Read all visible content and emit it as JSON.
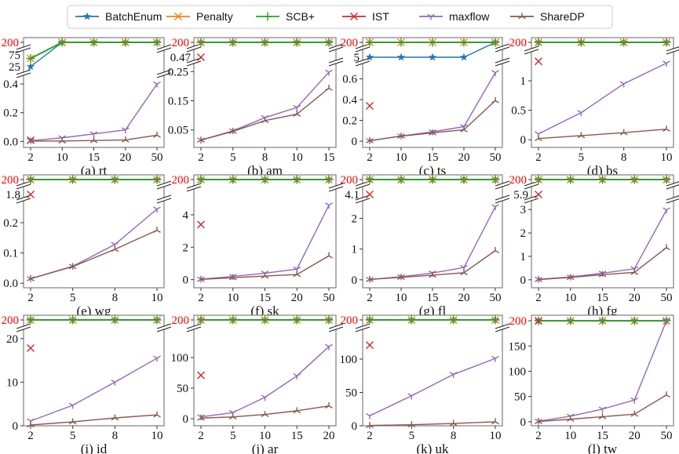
{
  "legend": {
    "placement": "top-center",
    "entries": [
      {
        "name": "BatchEnum",
        "color": "#1f77b4",
        "marker": "star"
      },
      {
        "name": "Penalty",
        "color": "#ff7f0e",
        "marker": "x"
      },
      {
        "name": "SCB+",
        "color": "#2ca02c",
        "marker": "plus"
      },
      {
        "name": "IST",
        "color": "#d62728",
        "marker": "x"
      },
      {
        "name": "maxflow",
        "color": "#9467bd",
        "marker": "tri_down"
      },
      {
        "name": "ShareDP",
        "color": "#8c564b",
        "marker": "tri_up"
      }
    ]
  },
  "chart_data": [
    {
      "type": "line",
      "title": "(a) rt",
      "x": [
        "2",
        "10",
        "15",
        "20",
        "50"
      ],
      "axis_break": true,
      "top_tick": "200",
      "mid_ticks": [
        "75",
        "25"
      ],
      "mid_values": [
        75,
        25
      ],
      "yticks": [
        "0.0",
        "0.2",
        "0.4"
      ],
      "ytick_values": [
        0,
        0.2,
        0.4
      ],
      "ylim": [
        -0.042,
        0.45
      ],
      "series": {
        "BatchEnum": [
          25,
          200,
          200,
          200,
          200
        ],
        "Penalty": [
          60,
          200,
          200,
          200,
          200
        ],
        "SCB+": [
          60,
          200,
          200,
          200,
          200
        ],
        "IST": [
          0.008,
          null,
          null,
          null,
          null
        ],
        "maxflow": [
          0.005,
          0.025,
          0.052,
          0.08,
          0.4
        ],
        "ShareDP": [
          0.002,
          0.003,
          0.006,
          0.01,
          0.043
        ]
      }
    },
    {
      "type": "line",
      "title": "(b) am",
      "x": [
        "2",
        "5",
        "8",
        "10",
        "15"
      ],
      "axis_break": true,
      "top_tick": "200",
      "mid_ticks": [
        "0.47"
      ],
      "mid_values": [
        0.47
      ],
      "yticks": [
        "0.05",
        "0.15",
        "0.25"
      ],
      "ytick_values": [
        0.05,
        0.15,
        0.25
      ],
      "ylim": [
        -0.01,
        0.275
      ],
      "series": {
        "BatchEnum": [
          200,
          200,
          200,
          200,
          200
        ],
        "Penalty": [
          200,
          200,
          200,
          200,
          200
        ],
        "SCB+": [
          200,
          200,
          200,
          200,
          200
        ],
        "IST": [
          0.47,
          null,
          null,
          null,
          null
        ],
        "maxflow": [
          0.015,
          0.047,
          0.092,
          0.127,
          0.248
        ],
        "ShareDP": [
          0.015,
          0.045,
          0.082,
          0.104,
          0.193
        ]
      }
    },
    {
      "type": "line",
      "title": "(c) ts",
      "x": [
        "2",
        "10",
        "15",
        "20",
        "50"
      ],
      "axis_break": true,
      "top_tick": "200",
      "mid_ticks": [
        "5"
      ],
      "mid_values": [
        5
      ],
      "yticks": [
        "0",
        "0.2",
        "0.4",
        "0.6"
      ],
      "ytick_values": [
        0,
        0.2,
        0.4,
        0.6
      ],
      "ylim": [
        -0.06,
        0.74
      ],
      "series": {
        "BatchEnum": [
          5,
          5,
          5,
          5,
          200
        ],
        "Penalty": [
          200,
          200,
          200,
          200,
          200
        ],
        "SCB+": [
          200,
          200,
          200,
          200,
          200
        ],
        "IST": [
          0.34,
          null,
          null,
          null,
          null
        ],
        "maxflow": [
          0.005,
          0.05,
          0.09,
          0.14,
          0.66
        ],
        "ShareDP": [
          0.005,
          0.048,
          0.08,
          0.11,
          0.39
        ]
      }
    },
    {
      "type": "line",
      "title": "(d) bs",
      "x": [
        "2",
        "5",
        "8",
        "10"
      ],
      "axis_break": true,
      "top_tick": "200",
      "mid_ticks": [],
      "mid_values": [],
      "yticks": [
        "0",
        "0.5",
        "1"
      ],
      "ytick_values": [
        0,
        0.5,
        1
      ],
      "ylim": [
        -0.13,
        1.44
      ],
      "series": {
        "BatchEnum": [
          200,
          200,
          200,
          200
        ],
        "Penalty": [
          200,
          200,
          200,
          200
        ],
        "SCB+": [
          200,
          200,
          200,
          200
        ],
        "IST": [
          1.33,
          null,
          null,
          null
        ],
        "maxflow": [
          0.1,
          0.46,
          0.95,
          1.3
        ],
        "ShareDP": [
          0.02,
          0.07,
          0.12,
          0.18
        ]
      }
    },
    {
      "type": "line",
      "title": "(e) wg",
      "x": [
        "2",
        "5",
        "8",
        "10"
      ],
      "axis_break": true,
      "top_tick": "200",
      "mid_ticks": [
        "1.8"
      ],
      "mid_values": [
        1.8
      ],
      "yticks": [
        "0.0",
        "0.1",
        "0.2"
      ],
      "ytick_values": [
        0,
        0.1,
        0.2
      ],
      "ylim": [
        -0.015,
        0.27
      ],
      "series": {
        "BatchEnum": [
          200,
          200,
          200,
          200
        ],
        "Penalty": [
          200,
          200,
          200,
          200
        ],
        "SCB+": [
          200,
          200,
          200,
          200
        ],
        "IST": [
          1.8,
          null,
          null,
          null
        ],
        "maxflow": [
          0.015,
          0.056,
          0.128,
          0.245
        ],
        "ShareDP": [
          0.015,
          0.055,
          0.112,
          0.175
        ]
      }
    },
    {
      "type": "line",
      "title": "(f) sk",
      "x": [
        "2",
        "10",
        "15",
        "20",
        "50"
      ],
      "axis_break": true,
      "top_tick": "200",
      "mid_ticks": [],
      "mid_values": [],
      "yticks": [
        "0",
        "2",
        "4"
      ],
      "ytick_values": [
        0,
        2,
        4
      ],
      "ylim": [
        -0.5,
        5.4
      ],
      "series": {
        "BatchEnum": [
          200,
          200,
          200,
          200,
          200
        ],
        "Penalty": [
          200,
          200,
          200,
          200,
          200
        ],
        "SCB+": [
          200,
          200,
          200,
          200,
          200
        ],
        "IST": [
          3.4,
          null,
          null,
          null,
          null
        ],
        "maxflow": [
          0.03,
          0.2,
          0.4,
          0.65,
          4.6
        ],
        "ShareDP": [
          0.02,
          0.12,
          0.22,
          0.32,
          1.47
        ]
      }
    },
    {
      "type": "line",
      "title": "(g) fl",
      "x": [
        "2",
        "10",
        "15",
        "20",
        "50"
      ],
      "axis_break": true,
      "top_tick": "200",
      "mid_ticks": [
        "4.1"
      ],
      "mid_values": [
        4.1
      ],
      "yticks": [
        "0",
        "1",
        "2"
      ],
      "ytick_values": [
        0,
        1,
        2
      ],
      "ylim": [
        -0.26,
        2.55
      ],
      "series": {
        "BatchEnum": [
          200,
          200,
          200,
          200,
          200
        ],
        "Penalty": [
          200,
          200,
          200,
          200,
          200
        ],
        "SCB+": [
          200,
          200,
          200,
          200,
          200
        ],
        "IST": [
          4.1,
          null,
          null,
          null,
          null
        ],
        "maxflow": [
          0.01,
          0.1,
          0.22,
          0.4,
          2.38
        ],
        "ShareDP": [
          0.01,
          0.08,
          0.15,
          0.23,
          0.95
        ]
      }
    },
    {
      "type": "line",
      "title": "(h) fg",
      "x": [
        "2",
        "10",
        "15",
        "20",
        "50"
      ],
      "axis_break": true,
      "top_tick": "200",
      "mid_ticks": [
        "5.9"
      ],
      "mid_values": [
        5.9
      ],
      "yticks": [
        "0",
        "1",
        "2",
        "3"
      ],
      "ytick_values": [
        0,
        1,
        2,
        3
      ],
      "ylim": [
        -0.34,
        3.34
      ],
      "series": {
        "BatchEnum": [
          200,
          200,
          200,
          200,
          200
        ],
        "Penalty": [
          200,
          200,
          200,
          200,
          200
        ],
        "SCB+": [
          200,
          200,
          200,
          200,
          200
        ],
        "IST": [
          5.9,
          null,
          null,
          null,
          null
        ],
        "maxflow": [
          0.02,
          0.12,
          0.28,
          0.47,
          2.98
        ],
        "ShareDP": [
          0.01,
          0.1,
          0.22,
          0.32,
          1.37
        ]
      }
    },
    {
      "type": "line",
      "title": "(i) id",
      "x": [
        "2",
        "5",
        "8",
        "10"
      ],
      "axis_break": true,
      "top_tick": "200",
      "mid_ticks": [],
      "mid_values": [],
      "yticks": [
        "0",
        "10",
        "20"
      ],
      "ytick_values": [
        0,
        10,
        20
      ],
      "ylim": [
        0,
        21.4
      ],
      "series": {
        "BatchEnum": [
          200,
          200,
          200,
          200
        ],
        "Penalty": [
          200,
          200,
          200,
          200
        ],
        "SCB+": [
          200,
          200,
          200,
          200
        ],
        "IST": [
          17.8,
          null,
          null,
          null
        ],
        "maxflow": [
          1.1,
          4.7,
          10,
          15.5
        ],
        "ShareDP": [
          0.2,
          0.9,
          1.8,
          2.5
        ]
      }
    },
    {
      "type": "line",
      "title": "(j) ar",
      "x": [
        "2",
        "5",
        "10",
        "15",
        "20"
      ],
      "axis_break": true,
      "top_tick": "200",
      "mid_ticks": [],
      "mid_values": [],
      "yticks": [
        "0",
        "50",
        "100"
      ],
      "ytick_values": [
        0,
        50,
        100
      ],
      "ylim": [
        -11.5,
        141
      ],
      "series": {
        "BatchEnum": [
          200,
          200,
          200,
          200,
          200
        ],
        "Penalty": [
          200,
          200,
          200,
          200,
          200
        ],
        "SCB+": [
          200,
          200,
          200,
          200,
          200
        ],
        "IST": [
          71,
          null,
          null,
          null,
          null
        ],
        "maxflow": [
          3,
          10,
          35,
          70,
          118
        ],
        "ShareDP": [
          1,
          3,
          7,
          13,
          21
        ]
      }
    },
    {
      "type": "line",
      "title": "(k) uk",
      "x": [
        "2",
        "5",
        "8",
        "10"
      ],
      "axis_break": true,
      "top_tick": "200",
      "mid_ticks": [],
      "mid_values": [],
      "yticks": [
        "0",
        "50",
        "100"
      ],
      "ytick_values": [
        0,
        50,
        100
      ],
      "ylim": [
        0,
        140
      ],
      "series": {
        "BatchEnum": [
          200,
          200,
          200,
          200
        ],
        "Penalty": [
          200,
          200,
          200,
          200
        ],
        "SCB+": [
          200,
          200,
          200,
          200
        ],
        "IST": [
          121,
          null,
          null,
          null
        ],
        "maxflow": [
          15,
          45,
          77,
          101
        ],
        "ShareDP": [
          0.5,
          1.5,
          3.5,
          6
        ]
      }
    },
    {
      "type": "line",
      "title": "(l) tw",
      "x": [
        "2",
        "10",
        "15",
        "20",
        "50"
      ],
      "axis_break": false,
      "top_tick": "200",
      "mid_ticks": [],
      "mid_values": [],
      "yticks": [
        "0",
        "50",
        "100",
        "150"
      ],
      "ytick_values": [
        0,
        50,
        100,
        150
      ],
      "ylim": [
        -8,
        211
      ],
      "series": {
        "BatchEnum": [
          200,
          200,
          200,
          200,
          200
        ],
        "Penalty": [
          200,
          200,
          200,
          200,
          200
        ],
        "SCB+": [
          200,
          200,
          200,
          200,
          200
        ],
        "IST": [
          200,
          null,
          null,
          null,
          null
        ],
        "maxflow": [
          1,
          11,
          25,
          43,
          200
        ],
        "ShareDP": [
          0.5,
          5,
          10,
          15,
          53
        ]
      }
    }
  ]
}
